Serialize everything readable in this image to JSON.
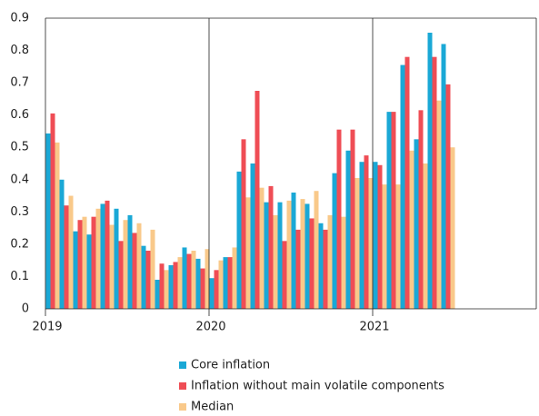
{
  "chart_data": {
    "type": "bar",
    "categories": [
      "2019",
      null,
      null,
      null,
      null,
      null,
      null,
      null,
      null,
      null,
      null,
      null,
      "2020",
      null,
      null,
      null,
      null,
      null,
      null,
      null,
      null,
      null,
      null,
      null,
      "2021",
      null,
      null,
      null,
      null,
      null,
      null,
      null,
      null,
      null,
      null,
      null
    ],
    "series": [
      {
        "name": "Core inflation",
        "color": "#1aa8d6",
        "values": [
          0.543,
          0.4,
          0.24,
          0.23,
          0.325,
          0.31,
          0.29,
          0.195,
          0.09,
          0.135,
          0.19,
          0.155,
          0.095,
          0.16,
          0.425,
          0.45,
          0.33,
          0.33,
          0.36,
          0.325,
          0.265,
          0.42,
          0.49,
          0.455,
          0.455,
          0.61,
          0.755,
          0.525,
          0.855,
          0.82,
          null,
          null,
          null,
          null,
          null,
          null
        ]
      },
      {
        "name": "Inflation without main volatile components",
        "color": "#ef4d55",
        "values": [
          0.605,
          0.32,
          0.275,
          0.285,
          0.335,
          0.21,
          0.235,
          0.18,
          0.14,
          0.145,
          0.17,
          0.125,
          0.12,
          0.16,
          0.525,
          0.675,
          0.38,
          0.21,
          0.245,
          0.28,
          0.245,
          0.555,
          0.555,
          0.475,
          0.445,
          0.61,
          0.78,
          0.615,
          0.78,
          0.695,
          null,
          null,
          null,
          null,
          null,
          null
        ]
      },
      {
        "name": "Median",
        "color": "#f9c98a",
        "values": [
          0.515,
          0.35,
          0.285,
          0.31,
          0.26,
          0.275,
          0.265,
          0.245,
          0.12,
          0.16,
          0.18,
          0.185,
          0.15,
          0.19,
          0.345,
          0.375,
          0.29,
          0.335,
          0.34,
          0.365,
          0.29,
          0.285,
          0.405,
          0.405,
          0.385,
          0.385,
          0.49,
          0.45,
          0.645,
          0.5,
          null,
          null,
          null,
          null,
          null,
          null
        ]
      }
    ],
    "ylim": [
      0,
      0.9
    ],
    "yticks": [
      0,
      0.1,
      0.2,
      0.3,
      0.4,
      0.5,
      0.6,
      0.7,
      0.8,
      0.9
    ],
    "grid": false
  }
}
